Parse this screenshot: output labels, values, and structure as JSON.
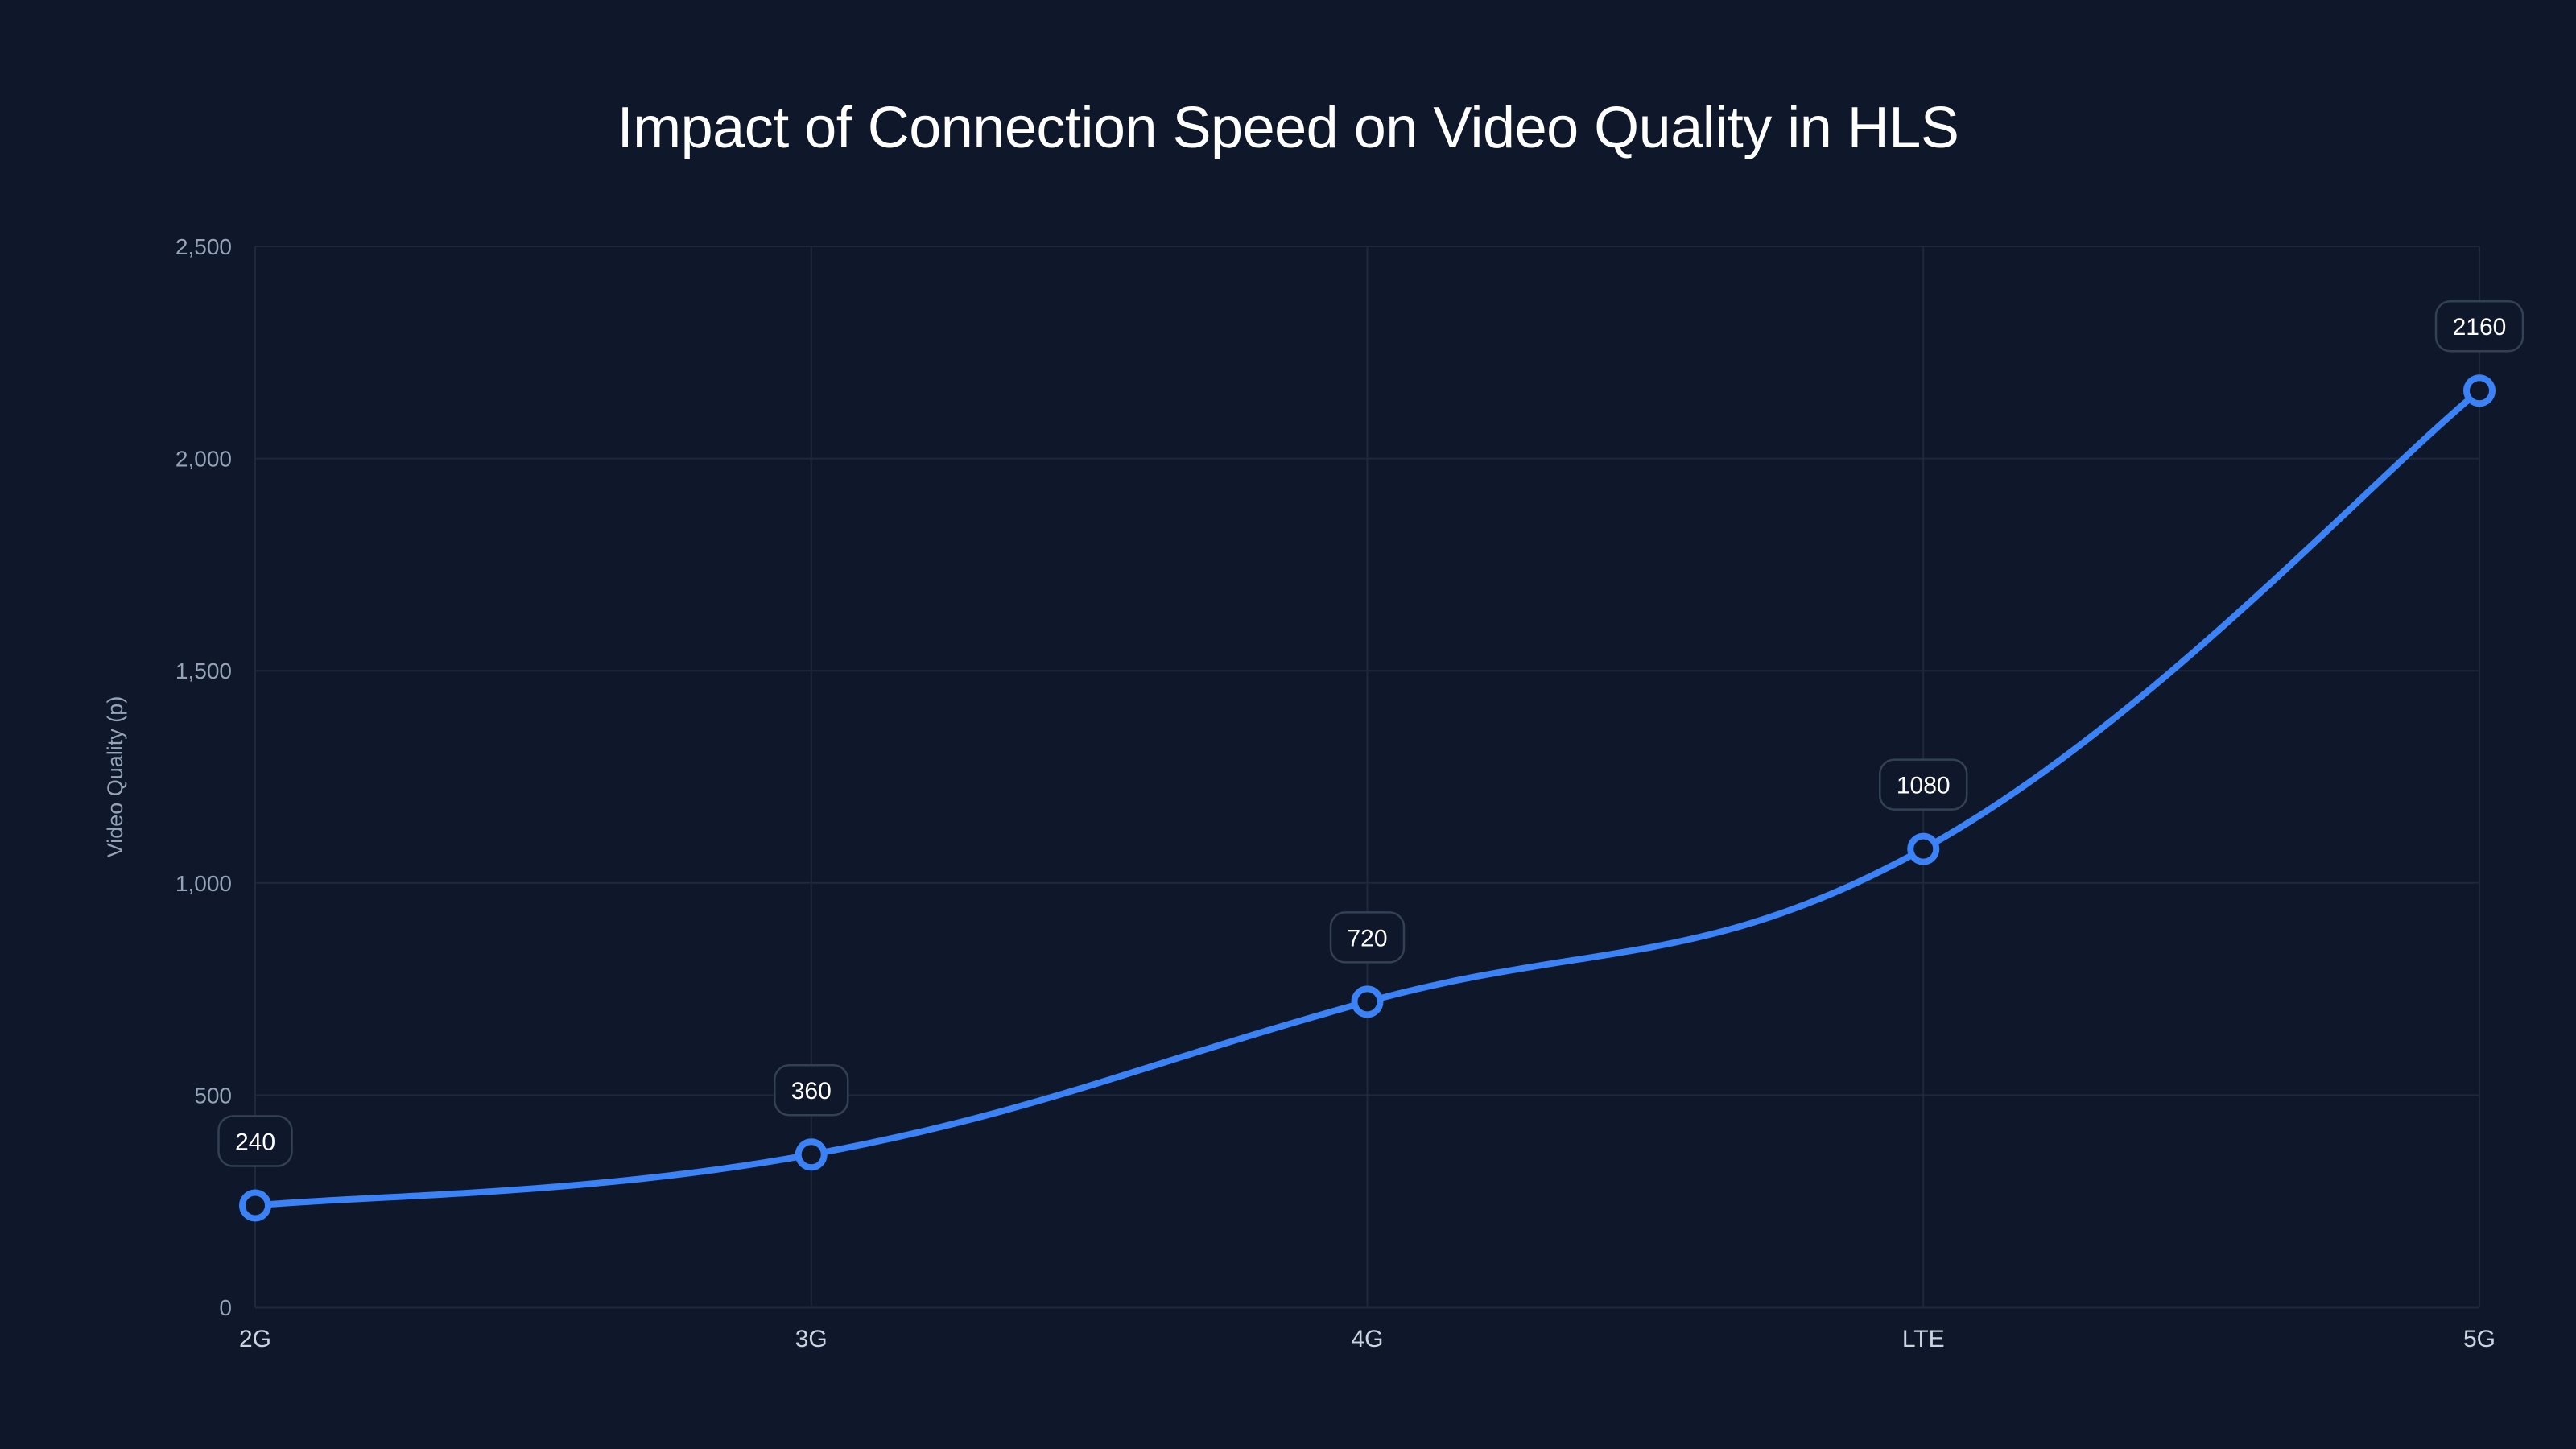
{
  "chart_data": {
    "type": "line",
    "title": "Impact of Connection Speed on Video Quality in HLS",
    "xlabel": "",
    "ylabel": "Video Quality (p)",
    "categories": [
      "2G",
      "3G",
      "4G",
      "LTE",
      "5G"
    ],
    "series": [
      {
        "name": "Video Quality",
        "values": [
          240,
          360,
          720,
          1080,
          2160
        ],
        "color": "#3b82f6"
      }
    ],
    "ylim": [
      0,
      2500
    ],
    "yticks": [
      0,
      500,
      1000,
      1500,
      2000,
      2500
    ],
    "ytick_labels": [
      "0",
      "500",
      "1,000",
      "1,500",
      "2,000",
      "2,500"
    ],
    "grid": true,
    "legend": "none",
    "data_labels": true,
    "line_style": "smooth"
  },
  "colors": {
    "background": "#0f172a",
    "line": "#3b82f6",
    "grid": "#1e293b",
    "label_border": "#334155"
  }
}
